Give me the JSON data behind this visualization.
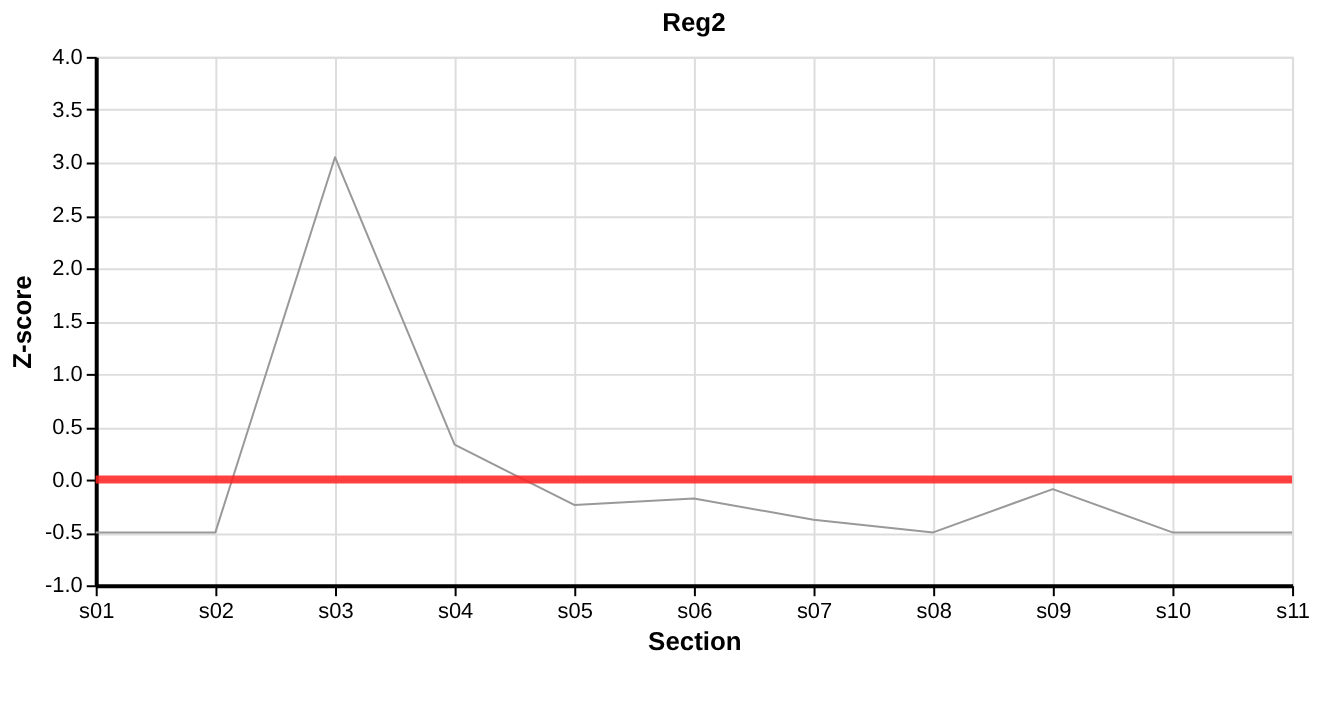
{
  "chart_data": {
    "type": "line",
    "title": "Reg2",
    "xlabel": "Section",
    "ylabel": "Z-score",
    "categories": [
      "s01",
      "s02",
      "s03",
      "s04",
      "s05",
      "s06",
      "s07",
      "s08",
      "s09",
      "s10",
      "s11"
    ],
    "series": [
      {
        "color": "#999999",
        "values": [
          -0.5,
          -0.5,
          3.05,
          0.33,
          -0.24,
          -0.18,
          -0.38,
          -0.5,
          -0.09,
          -0.5,
          -0.5
        ]
      }
    ],
    "ylim": [
      -1.0,
      4.0
    ],
    "yticks": [
      {
        "value": -1,
        "label": "-1.0"
      },
      {
        "value": -0.5,
        "label": "-0.5"
      },
      {
        "value": 0,
        "label": "0.0"
      },
      {
        "value": 0.5,
        "label": "0.5"
      },
      {
        "value": 1,
        "label": "1.0"
      },
      {
        "value": 1.5,
        "label": "1.5"
      },
      {
        "value": 2,
        "label": "2.0"
      },
      {
        "value": 2.5,
        "label": "2.5"
      },
      {
        "value": 3,
        "label": "3.0"
      },
      {
        "value": 3.5,
        "label": "3.5"
      },
      {
        "value": 4,
        "label": "4.0"
      }
    ],
    "ref_lines": [
      {
        "axis": "y",
        "value": 0,
        "color": "#ff2020",
        "line_style": "solid"
      }
    ],
    "grid": true,
    "marker": "none",
    "line_style": "solid"
  }
}
